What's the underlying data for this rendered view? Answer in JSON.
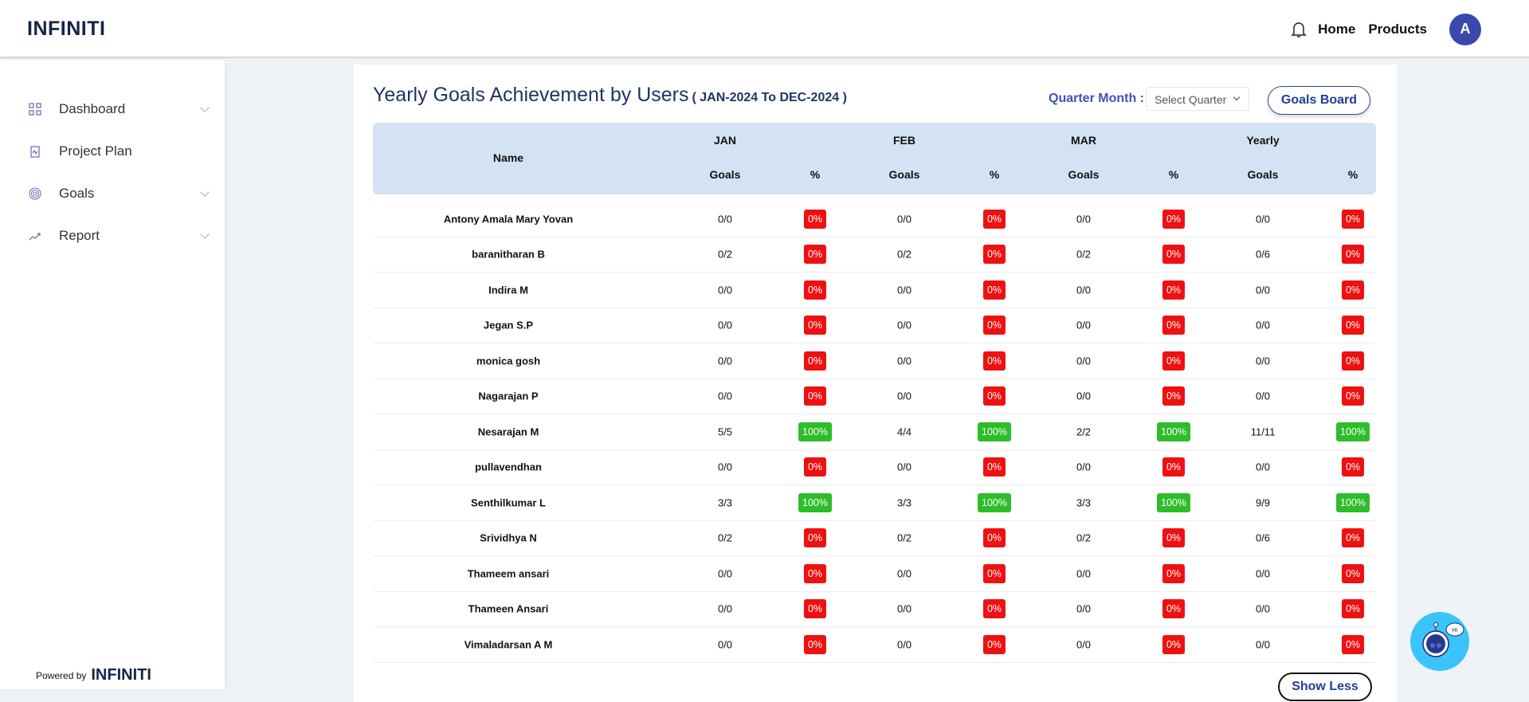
{
  "header": {
    "logo": "INFINITI",
    "links": [
      "Home",
      "Products"
    ],
    "avatar": "A"
  },
  "sidebar": {
    "items": [
      {
        "label": "Dashboard",
        "icon": "grid-icon",
        "expandable": true
      },
      {
        "label": "Project Plan",
        "icon": "clipboard-icon",
        "expandable": false
      },
      {
        "label": "Goals",
        "icon": "target-icon",
        "expandable": true
      },
      {
        "label": "Report",
        "icon": "trend-icon",
        "expandable": true
      }
    ],
    "powered_by": "Powered by",
    "powered_logo": "INFINITI"
  },
  "main": {
    "title": "Yearly Goals Achievement by Users",
    "subtitle": "( JAN-2024 To DEC-2024 )",
    "quarter_label": "Quarter Month :",
    "quarter_select": "Select Quarter",
    "goals_board": "Goals Board",
    "show_less": "Show Less",
    "table": {
      "name_header": "Name",
      "groups": [
        "JAN",
        "FEB",
        "MAR",
        "Yearly"
      ],
      "sub_headers": [
        "Goals",
        "%"
      ],
      "rows": [
        [
          "Antony Amala Mary Yovan",
          "0/0",
          "0%",
          "0/0",
          "0%",
          "0/0",
          "0%",
          "0/0",
          "0%"
        ],
        [
          "baranitharan B",
          "0/2",
          "0%",
          "0/2",
          "0%",
          "0/2",
          "0%",
          "0/6",
          "0%"
        ],
        [
          "Indira M",
          "0/0",
          "0%",
          "0/0",
          "0%",
          "0/0",
          "0%",
          "0/0",
          "0%"
        ],
        [
          "Jegan S.P",
          "0/0",
          "0%",
          "0/0",
          "0%",
          "0/0",
          "0%",
          "0/0",
          "0%"
        ],
        [
          "monica gosh",
          "0/0",
          "0%",
          "0/0",
          "0%",
          "0/0",
          "0%",
          "0/0",
          "0%"
        ],
        [
          "Nagarajan P",
          "0/0",
          "0%",
          "0/0",
          "0%",
          "0/0",
          "0%",
          "0/0",
          "0%"
        ],
        [
          "Nesarajan M",
          "5/5",
          "100%",
          "4/4",
          "100%",
          "2/2",
          "100%",
          "11/11",
          "100%"
        ],
        [
          "pullavendhan",
          "0/0",
          "0%",
          "0/0",
          "0%",
          "0/0",
          "0%",
          "0/0",
          "0%"
        ],
        [
          "Senthilkumar L",
          "3/3",
          "100%",
          "3/3",
          "100%",
          "3/3",
          "100%",
          "9/9",
          "100%"
        ],
        [
          "Srividhya N",
          "0/2",
          "0%",
          "0/2",
          "0%",
          "0/2",
          "0%",
          "0/6",
          "0%"
        ],
        [
          "Thameem ansari",
          "0/0",
          "0%",
          "0/0",
          "0%",
          "0/0",
          "0%",
          "0/0",
          "0%"
        ],
        [
          "Thameen Ansari",
          "0/0",
          "0%",
          "0/0",
          "0%",
          "0/0",
          "0%",
          "0/0",
          "0%"
        ],
        [
          "Vimaladarsan A M",
          "0/0",
          "0%",
          "0/0",
          "0%",
          "0/0",
          "0%",
          "0/0",
          "0%"
        ]
      ]
    }
  },
  "chatbot": {
    "bubble": "HI"
  },
  "colors": {
    "accent": "#3f51b5",
    "fail": "#ee1111",
    "success": "#2ebd2a",
    "header_band": "#d4e3f3"
  }
}
